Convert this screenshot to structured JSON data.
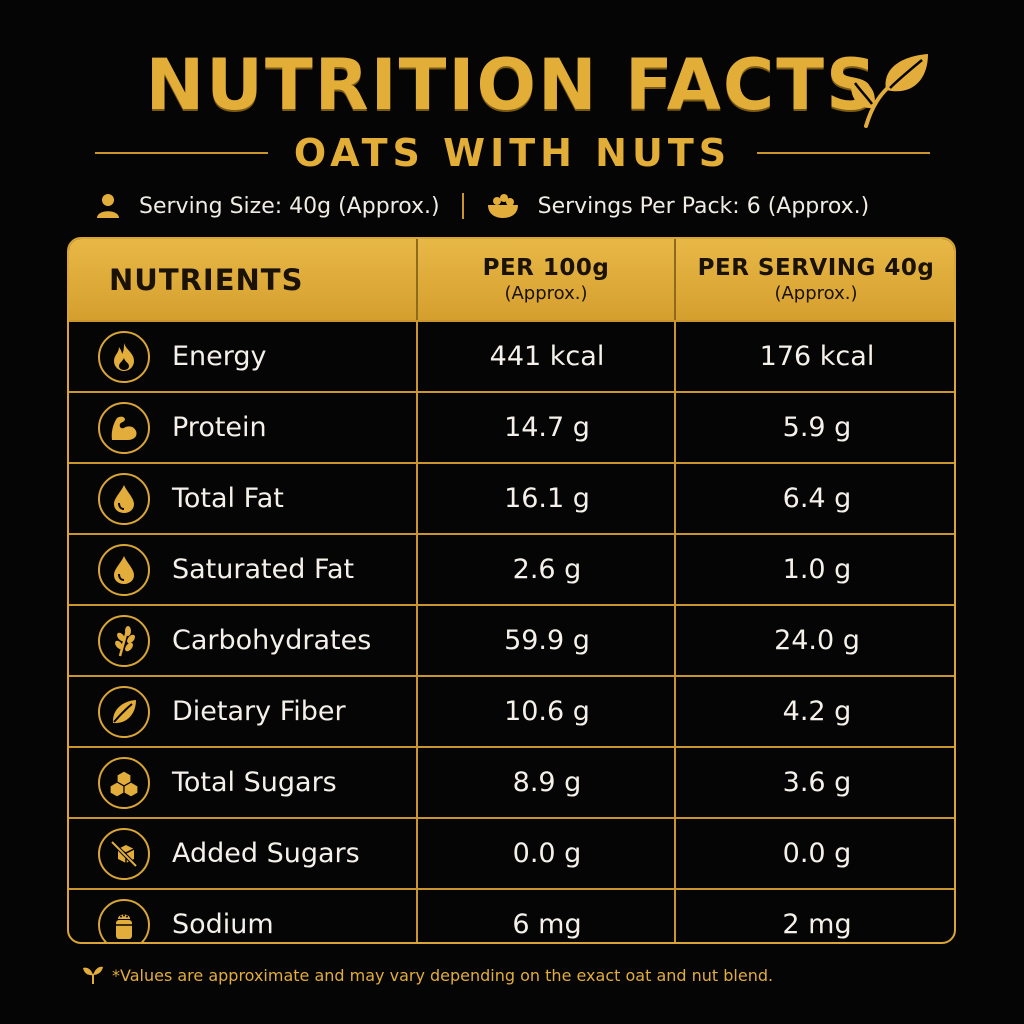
{
  "header": {
    "title": "NUTRITION FACTS",
    "subtitle": "OATS WITH NUTS",
    "serving_size": "Serving Size: 40g (Approx.)",
    "servings_per_pack": "Servings Per Pack: 6 (Approx.)",
    "title_icon": "leaf-icon"
  },
  "table": {
    "col_nutrients": "NUTRIENTS",
    "col_per100_main": "PER 100g",
    "col_per100_sub": "(Approx.)",
    "col_serving_main": "PER SERVING 40g",
    "col_serving_sub": "(Approx.)",
    "rows": [
      {
        "name": "Energy",
        "per100": "441 kcal",
        "serving": "176 kcal",
        "icon": "flame-icon"
      },
      {
        "name": "Protein",
        "per100": "14.7 g",
        "serving": "5.9 g",
        "icon": "muscle-icon"
      },
      {
        "name": "Total Fat",
        "per100": "16.1 g",
        "serving": "6.4 g",
        "icon": "oil-drop-icon"
      },
      {
        "name": "Saturated Fat",
        "per100": "2.6 g",
        "serving": "1.0 g",
        "icon": "drop-icon"
      },
      {
        "name": "Carbohydrates",
        "per100": "59.9 g",
        "serving": "24.0 g",
        "icon": "wheat-icon"
      },
      {
        "name": "Dietary Fiber",
        "per100": "10.6 g",
        "serving": "4.2 g",
        "icon": "leaf-icon"
      },
      {
        "name": "Total Sugars",
        "per100": "8.9 g",
        "serving": "3.6 g",
        "icon": "sugar-cubes-icon"
      },
      {
        "name": "Added Sugars",
        "per100": "0.0 g",
        "serving": "0.0 g",
        "icon": "no-sugar-icon"
      },
      {
        "name": "Sodium",
        "per100": "6 mg",
        "serving": "2 mg",
        "icon": "salt-shaker-icon"
      }
    ]
  },
  "footnote": "*Values are approximate and may vary depending on the exact oat and nut blend.",
  "colors": {
    "accent": "#e2ad3a",
    "background": "#050505",
    "header_fill": "#d9a536",
    "text": "#f5f1ea"
  }
}
